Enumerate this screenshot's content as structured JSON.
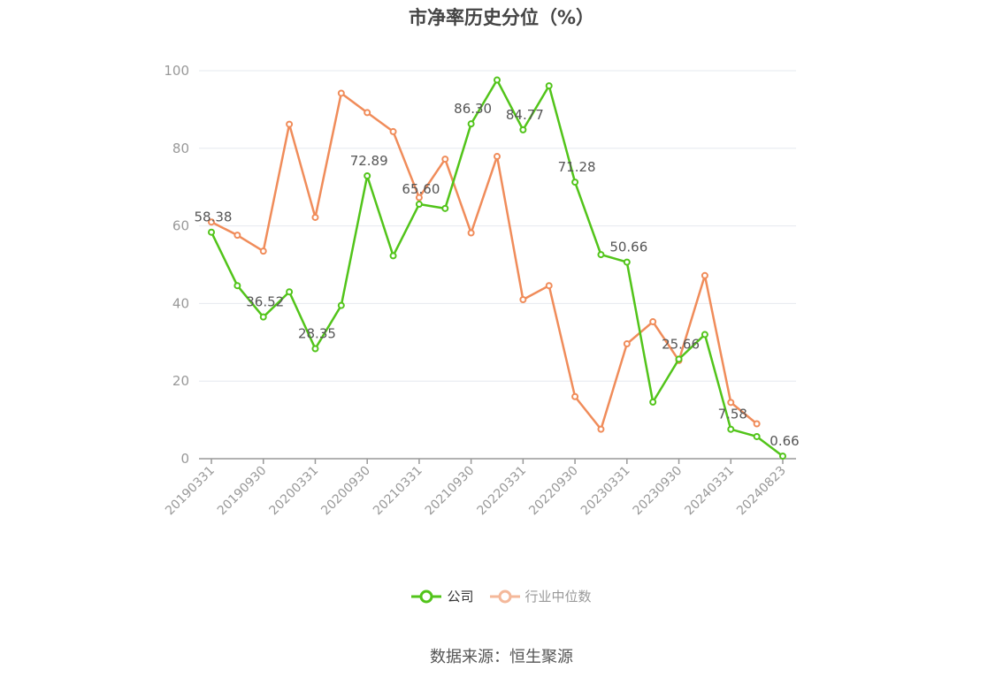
{
  "chart_data": {
    "type": "line",
    "title": "市净率历史分位（%）",
    "xlabel": "",
    "ylabel": "",
    "ylim": [
      0,
      100
    ],
    "yticks": [
      0,
      20,
      40,
      60,
      80,
      100
    ],
    "x": [
      "20190331",
      "20190630",
      "20190930",
      "20191231",
      "20200331",
      "20200630",
      "20200930",
      "20201231",
      "20210331",
      "20210630",
      "20210930",
      "20211231",
      "20220331",
      "20220630",
      "20220930",
      "20221231",
      "20230331",
      "20230630",
      "20230930",
      "20231231",
      "20240331",
      "20240630",
      "20240823"
    ],
    "xtick_labels": [
      "20190331",
      "20190930",
      "20200331",
      "20200930",
      "20210331",
      "20210930",
      "20220331",
      "20220930",
      "20230331",
      "20230930",
      "20240331",
      "20240823"
    ],
    "grid": true,
    "legend_position": "bottom",
    "series": [
      {
        "name": "公司",
        "color": "#52c41a",
        "values": [
          58.38,
          44.6,
          36.52,
          43.0,
          28.35,
          39.5,
          72.89,
          52.3,
          65.6,
          64.5,
          86.3,
          97.6,
          84.77,
          96.1,
          71.28,
          52.6,
          50.66,
          14.6,
          25.66,
          32.0,
          7.58,
          5.7,
          0.66
        ],
        "labels": {
          "0": "58.38",
          "2": "36.52",
          "4": "28.35",
          "6": "72.89",
          "8": "65.60",
          "10": "86.30",
          "12": "84.77",
          "14": "71.28",
          "16": "50.66",
          "18": "25.66",
          "20": "7.58",
          "22": "0.66"
        }
      },
      {
        "name": "行业中位数",
        "color": "#f08c5a",
        "values": [
          61.0,
          57.6,
          53.5,
          86.2,
          62.2,
          94.2,
          89.2,
          84.3,
          67.3,
          77.2,
          58.2,
          77.9,
          41.0,
          44.6,
          16.0,
          7.6,
          29.6,
          35.3,
          25.3,
          47.2,
          14.5,
          9.0,
          null
        ]
      }
    ]
  },
  "legend": {
    "items": [
      {
        "label": "公司",
        "color": "#52c41a"
      },
      {
        "label": "行业中位数",
        "color": "#f4b89a"
      }
    ]
  },
  "footer": {
    "source": "数据来源：恒生聚源"
  }
}
